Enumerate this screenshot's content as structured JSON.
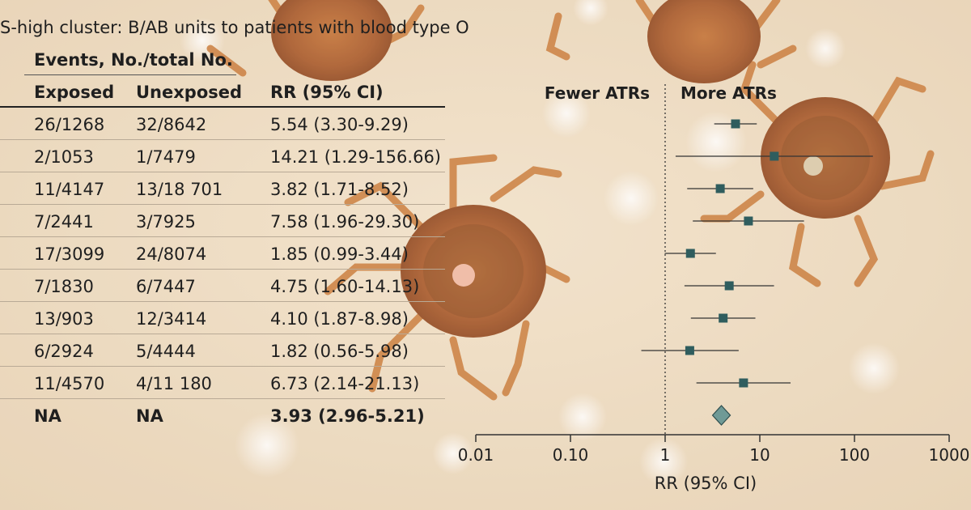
{
  "title": "S-high cluster: B/AB units to patients with blood type O",
  "table": {
    "group_header": "Events, No./total No.",
    "columns": [
      "Exposed",
      "Unexposed",
      "RR (95% CI)"
    ],
    "rows": [
      {
        "exposed": "26/1268",
        "unexposed": "32/8642",
        "rr": "5.54 (3.30-9.29)"
      },
      {
        "exposed": "2/1053",
        "unexposed": "1/7479",
        "rr": "14.21 (1.29-156.66)"
      },
      {
        "exposed": "11/4147",
        "unexposed": "13/18 701",
        "rr": "3.82 (1.71-8.52)"
      },
      {
        "exposed": "7/2441",
        "unexposed": "3/7925",
        "rr": "7.58 (1.96-29.30)"
      },
      {
        "exposed": "17/3099",
        "unexposed": "24/8074",
        "rr": "1.85 (0.99-3.44)"
      },
      {
        "exposed": "7/1830",
        "unexposed": "6/7447",
        "rr": "4.75 (1.60-14.13)"
      },
      {
        "exposed": "13/903",
        "unexposed": "12/3414",
        "rr": "4.10 (1.87-8.98)"
      },
      {
        "exposed": "6/2924",
        "unexposed": "5/4444",
        "rr": "1.82 (0.56-5.98)"
      },
      {
        "exposed": "11/4570",
        "unexposed": "4/11 180",
        "rr": "6.73 (2.14-21.13)"
      },
      {
        "exposed": "NA",
        "unexposed": "NA",
        "rr": "3.93 (2.96-5.21)",
        "pooled": true
      }
    ]
  },
  "chart_data": {
    "type": "forest",
    "scale": "log",
    "xlim": [
      0.01,
      1000
    ],
    "xticks": [
      "0.01",
      "0.10",
      "1",
      "10",
      "100",
      "1000"
    ],
    "xlabel": "RR (95% CI)",
    "reference_line": 1,
    "annotations": [
      "Fewer ATRs",
      "More ATRs"
    ],
    "estimates": [
      {
        "rr": 5.54,
        "lo": 3.3,
        "hi": 9.29
      },
      {
        "rr": 14.21,
        "lo": 1.29,
        "hi": 156.66
      },
      {
        "rr": 3.82,
        "lo": 1.71,
        "hi": 8.52
      },
      {
        "rr": 7.58,
        "lo": 1.96,
        "hi": 29.3
      },
      {
        "rr": 1.85,
        "lo": 0.99,
        "hi": 3.44
      },
      {
        "rr": 4.75,
        "lo": 1.6,
        "hi": 14.13
      },
      {
        "rr": 4.1,
        "lo": 1.87,
        "hi": 8.98
      },
      {
        "rr": 1.82,
        "lo": 0.56,
        "hi": 5.98
      },
      {
        "rr": 6.73,
        "lo": 2.14,
        "hi": 21.13
      }
    ],
    "pooled": {
      "rr": 3.93,
      "lo": 2.96,
      "hi": 5.21
    },
    "colors": {
      "marker": "#2f5d5e",
      "diamond": "#6f9a96",
      "line": "#333333"
    }
  }
}
